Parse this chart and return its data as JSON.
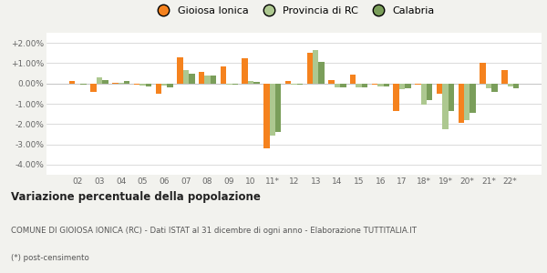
{
  "years": [
    "02",
    "03",
    "04",
    "05",
    "06",
    "07",
    "08",
    "09",
    "10",
    "11*",
    "12",
    "13",
    "14",
    "15",
    "16",
    "17",
    "18*",
    "19*",
    "20*",
    "21*",
    "22*"
  ],
  "gioiosa": [
    0.13,
    -0.4,
    0.05,
    -0.05,
    -0.5,
    1.28,
    0.55,
    0.85,
    1.25,
    -3.2,
    0.1,
    1.5,
    0.15,
    0.45,
    -0.05,
    -1.35,
    -0.05,
    -0.5,
    -1.95,
    1.0,
    0.65
  ],
  "provincia": [
    0.0,
    0.3,
    0.05,
    -0.1,
    -0.1,
    0.65,
    0.4,
    -0.05,
    0.1,
    -2.55,
    -0.05,
    1.65,
    -0.2,
    -0.2,
    -0.15,
    -0.3,
    -1.05,
    -2.25,
    -1.8,
    -0.25,
    -0.15
  ],
  "calabria": [
    -0.05,
    0.15,
    0.1,
    -0.15,
    -0.2,
    0.5,
    0.38,
    -0.05,
    0.08,
    -2.4,
    -0.05,
    1.05,
    -0.2,
    -0.2,
    -0.15,
    -0.25,
    -0.8,
    -1.35,
    -1.45,
    -0.4,
    -0.25
  ],
  "color_gioiosa": "#f5821e",
  "color_provincia": "#adc890",
  "color_calabria": "#7a9e5a",
  "title": "Variazione percentuale della popolazione",
  "subtitle": "COMUNE DI GIOIOSA IONICA (RC) - Dati ISTAT al 31 dicembre di ogni anno - Elaborazione TUTTITALIA.IT",
  "footnote": "(*) post-censimento",
  "ylim": [
    -4.5,
    2.5
  ],
  "yticks": [
    -4.0,
    -3.0,
    -2.0,
    -1.0,
    0.0,
    1.0,
    2.0
  ],
  "ytick_labels": [
    "-4.00%",
    "-3.00%",
    "-2.00%",
    "-1.00%",
    "0.00%",
    "+1.00%",
    "+2.00%"
  ],
  "legend_labels": [
    "Gioiosa Ionica",
    "Provincia di RC",
    "Calabria"
  ],
  "bg_color": "#f2f2ee",
  "plot_bg_color": "#ffffff"
}
